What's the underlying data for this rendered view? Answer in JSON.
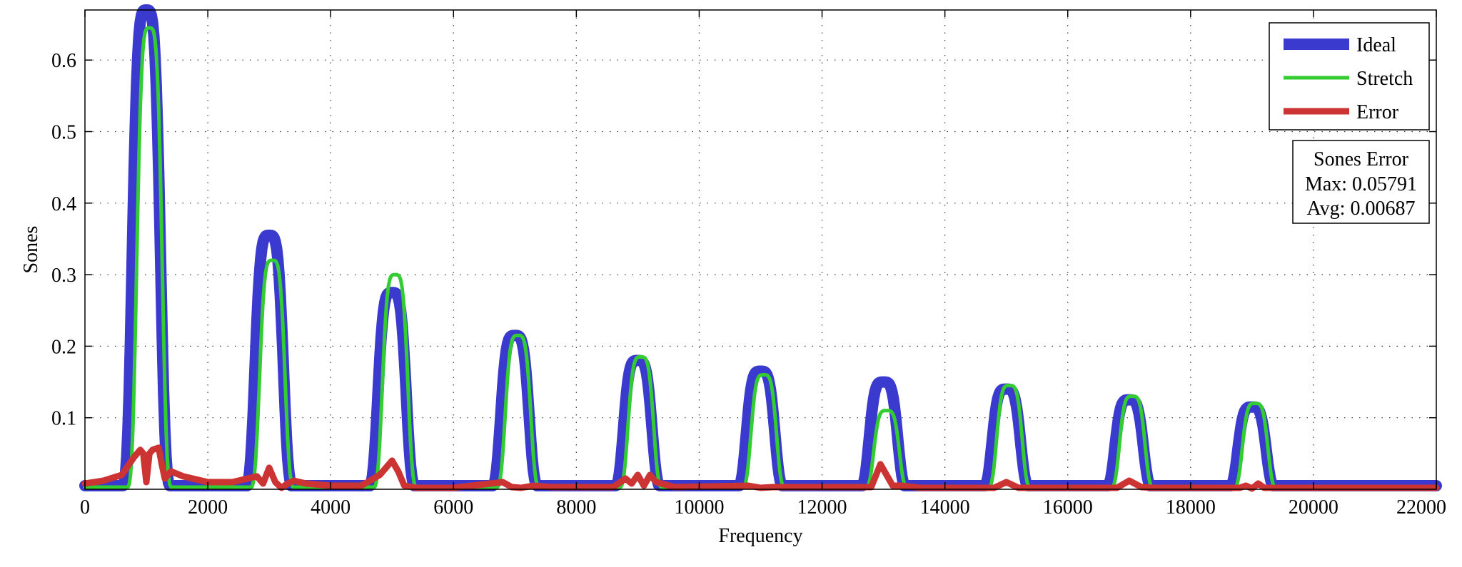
{
  "chart_data": {
    "type": "line",
    "xlabel": "Frequency",
    "ylabel": "Sones",
    "xlim": [
      0,
      22000
    ],
    "ylim": [
      0,
      0.67
    ],
    "xticks": [
      0,
      2000,
      4000,
      6000,
      8000,
      10000,
      12000,
      14000,
      16000,
      18000,
      20000,
      22000
    ],
    "xtick_labels": [
      "0",
      "2000",
      "4000",
      "6000",
      "8000",
      "10000",
      "12000",
      "14000",
      "16000",
      "18000",
      "20000",
      "22000"
    ],
    "yticks": [
      0.1,
      0.2,
      0.3,
      0.4,
      0.5,
      0.6
    ],
    "ytick_labels": [
      "0.1",
      "0.2",
      "0.3",
      "0.4",
      "0.5",
      "0.6"
    ],
    "grid": true,
    "legend_position": "top-right",
    "series": [
      {
        "name": "Ideal",
        "color": "#3a3acf",
        "peaks": [
          {
            "center": 1000,
            "value": 0.67
          },
          {
            "center": 3000,
            "value": 0.355
          },
          {
            "center": 5000,
            "value": 0.275
          },
          {
            "center": 7000,
            "value": 0.215
          },
          {
            "center": 9000,
            "value": 0.18
          },
          {
            "center": 11000,
            "value": 0.165
          },
          {
            "center": 13000,
            "value": 0.15
          },
          {
            "center": 15000,
            "value": 0.14
          },
          {
            "center": 17000,
            "value": 0.125
          },
          {
            "center": 19000,
            "value": 0.115
          }
        ],
        "baseline": 0.005
      },
      {
        "name": "Stretch",
        "color": "#33cc33",
        "peaks": [
          {
            "center": 1050,
            "value": 0.645
          },
          {
            "center": 3050,
            "value": 0.32
          },
          {
            "center": 5050,
            "value": 0.3
          },
          {
            "center": 7050,
            "value": 0.215
          },
          {
            "center": 9050,
            "value": 0.185
          },
          {
            "center": 11050,
            "value": 0.16
          },
          {
            "center": 13050,
            "value": 0.11
          },
          {
            "center": 15050,
            "value": 0.145
          },
          {
            "center": 17050,
            "value": 0.13
          },
          {
            "center": 19050,
            "value": 0.12
          }
        ],
        "baseline": 0.003
      },
      {
        "name": "Error",
        "color": "#cc3333",
        "x": [
          0,
          300,
          600,
          800,
          900,
          950,
          1000,
          1050,
          1100,
          1200,
          1250,
          1300,
          1400,
          1600,
          2000,
          2400,
          2800,
          2900,
          3000,
          3100,
          3200,
          3300,
          3400,
          3600,
          4000,
          4500,
          4800,
          5000,
          5100,
          5200,
          5400,
          6000,
          6800,
          6950,
          7100,
          7300,
          7600,
          8600,
          8800,
          8900,
          9000,
          9100,
          9200,
          9300,
          9600,
          10800,
          11000,
          11200,
          12800,
          12950,
          13050,
          13150,
          13300,
          13600,
          14800,
          15000,
          15200,
          15400,
          16800,
          17000,
          17200,
          17400,
          18800,
          18900,
          19000,
          19100,
          19200,
          19400,
          22000
        ],
        "y": [
          0.008,
          0.012,
          0.02,
          0.045,
          0.055,
          0.05,
          0.01,
          0.05,
          0.055,
          0.058,
          0.035,
          0.015,
          0.025,
          0.018,
          0.01,
          0.01,
          0.018,
          0.008,
          0.03,
          0.01,
          0.002,
          0.008,
          0.012,
          0.008,
          0.005,
          0.005,
          0.02,
          0.04,
          0.025,
          0.005,
          0.002,
          0.002,
          0.01,
          0.003,
          0.002,
          0.005,
          0.003,
          0.003,
          0.015,
          0.008,
          0.02,
          0.005,
          0.02,
          0.01,
          0.003,
          0.005,
          0.002,
          0.003,
          0.003,
          0.035,
          0.02,
          0.005,
          0.005,
          0.002,
          0.002,
          0.01,
          0.002,
          0.002,
          0.002,
          0.012,
          0.003,
          0.002,
          0.002,
          0.005,
          0.001,
          0.008,
          0.002,
          0.002,
          0.002
        ]
      }
    ],
    "annotation": {
      "title": "Sones Error",
      "lines": [
        "Max: 0.05791",
        "Avg: 0.00687"
      ]
    }
  }
}
